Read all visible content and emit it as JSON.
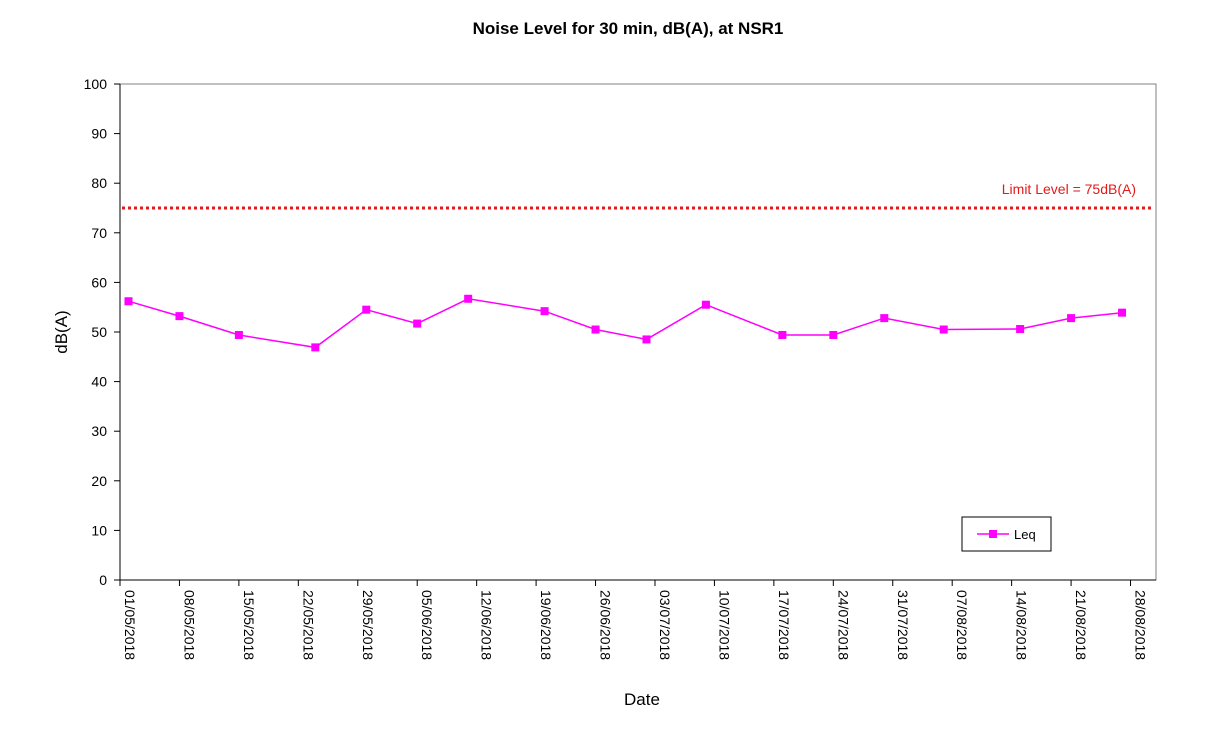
{
  "chart_data": {
    "type": "line",
    "title": "Noise Level for 30 min, dB(A), at NSR1",
    "xlabel": "Date",
    "ylabel": "dB(A)",
    "ylim": [
      0,
      100
    ],
    "yticks": [
      0,
      10,
      20,
      30,
      40,
      50,
      60,
      70,
      80,
      90,
      100
    ],
    "x_range": [
      "2018-05-01",
      "2018-08-31"
    ],
    "xtick_labels": [
      "01/05/2018",
      "08/05/2018",
      "15/05/2018",
      "22/05/2018",
      "29/05/2018",
      "05/06/2018",
      "12/06/2018",
      "19/06/2018",
      "26/06/2018",
      "03/07/2018",
      "10/07/2018",
      "17/07/2018",
      "24/07/2018",
      "31/07/2018",
      "07/08/2018",
      "14/08/2018",
      "21/08/2018",
      "28/08/2018"
    ],
    "grid": false,
    "legend_position": "bottom-right",
    "series": [
      {
        "name": "Leq",
        "color": "#ff00ff",
        "marker": "square",
        "x": [
          "2018-05-02",
          "2018-05-08",
          "2018-05-15",
          "2018-05-24",
          "2018-05-30",
          "2018-06-05",
          "2018-06-11",
          "2018-06-20",
          "2018-06-26",
          "2018-07-02",
          "2018-07-09",
          "2018-07-18",
          "2018-07-24",
          "2018-07-30",
          "2018-08-06",
          "2018-08-15",
          "2018-08-21",
          "2018-08-27"
        ],
        "values": [
          56.2,
          53.2,
          49.4,
          46.9,
          54.5,
          51.7,
          56.7,
          54.2,
          50.5,
          48.5,
          55.5,
          49.4,
          49.4,
          52.8,
          50.5,
          50.6,
          52.8,
          53.9
        ]
      }
    ],
    "limit_line": {
      "value": 75,
      "label": "Limit Level = 75dB(A)",
      "color": "#e41a1a"
    }
  }
}
